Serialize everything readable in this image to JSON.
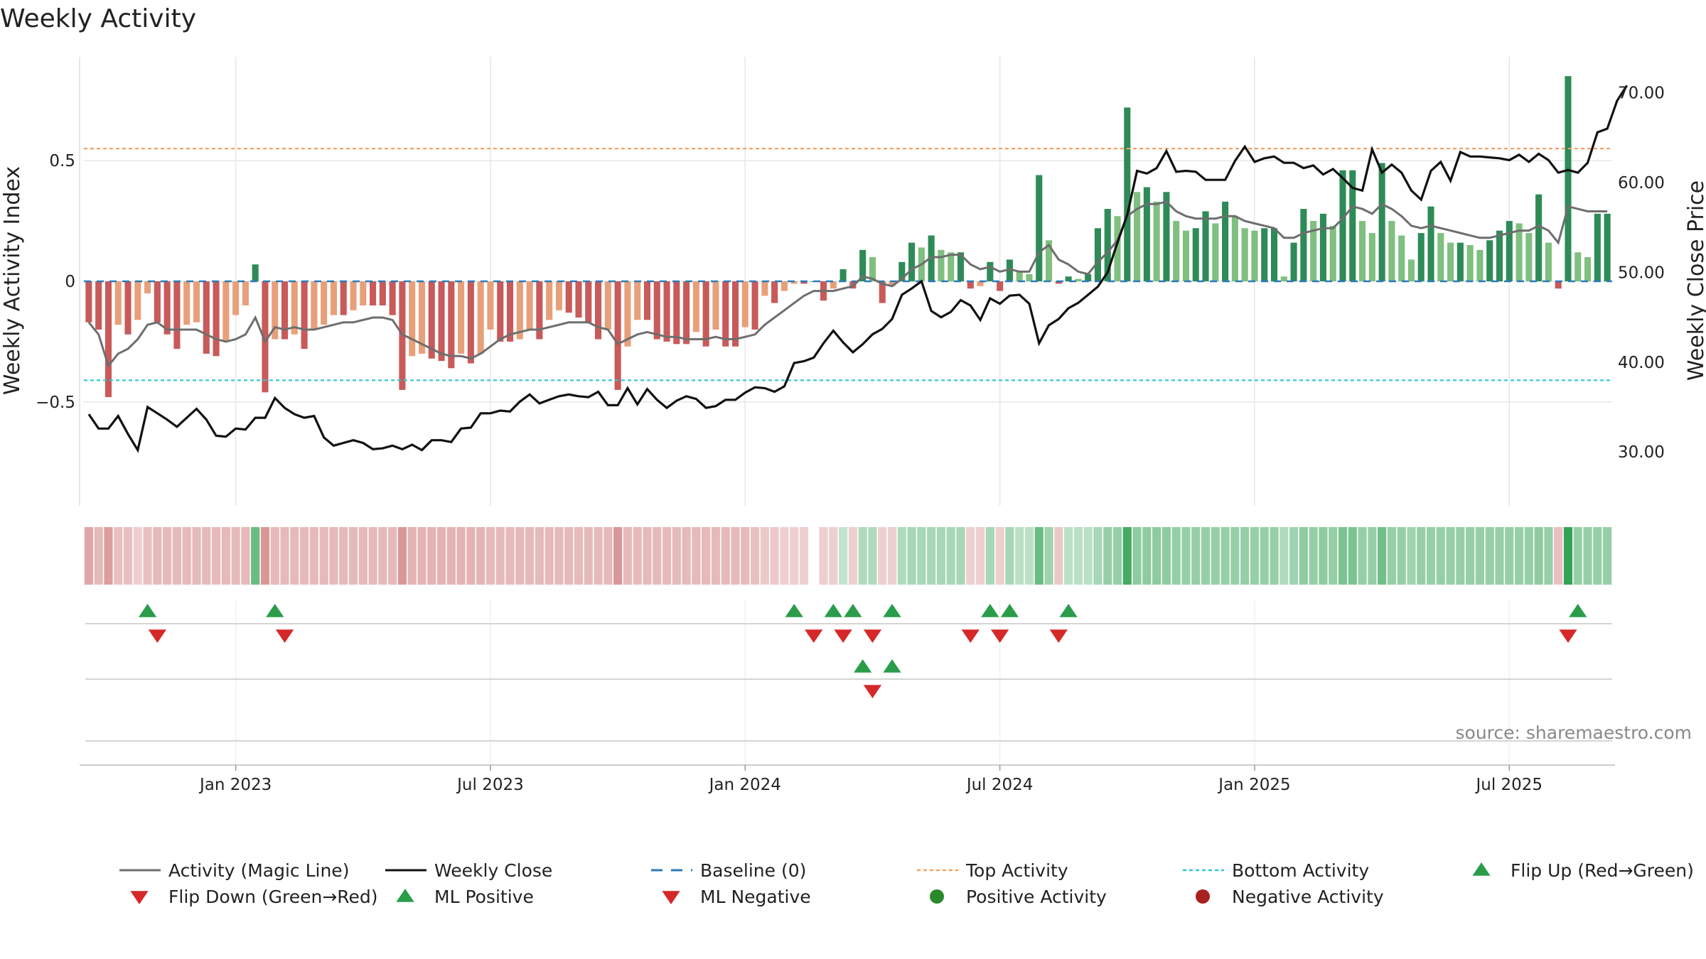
{
  "chart_data": {
    "type": "bar",
    "title": "Weekly Activity",
    "source": "source: sharemaestro.com",
    "ylabel_left": "Weekly Activity Index",
    "ylabel_right": "Weekly Close Price",
    "ylim_left": [
      -0.93,
      0.93
    ],
    "ylim_right": [
      24.0,
      74.0
    ],
    "yticks_left": [
      {
        "v": 0.5,
        "label": "0.5"
      },
      {
        "v": 0,
        "label": "0"
      },
      {
        "v": -0.5,
        "label": "−0.5"
      }
    ],
    "yticks_right": [
      {
        "v": 70,
        "label": "70.00"
      },
      {
        "v": 60,
        "label": "60.00"
      },
      {
        "v": 50,
        "label": "50.00"
      },
      {
        "v": 40,
        "label": "40.00"
      },
      {
        "v": 30,
        "label": "30.00"
      }
    ],
    "x_week_count": 156,
    "xticks": [
      {
        "week": 15,
        "label": "Jan 2023"
      },
      {
        "week": 41,
        "label": "Jul 2023"
      },
      {
        "week": 67,
        "label": "Jan 2024"
      },
      {
        "week": 93,
        "label": "Jul 2024"
      },
      {
        "week": 119,
        "label": "Jan 2025"
      },
      {
        "week": 145,
        "label": "Jul 2025"
      }
    ],
    "top_activity": 0.55,
    "bottom_activity": -0.41,
    "activity": [
      -0.17,
      -0.2,
      -0.48,
      -0.18,
      -0.22,
      -0.16,
      -0.05,
      -0.17,
      -0.22,
      -0.28,
      -0.18,
      -0.17,
      -0.3,
      -0.31,
      -0.25,
      -0.14,
      -0.1,
      0.07,
      -0.46,
      -0.24,
      -0.24,
      -0.22,
      -0.28,
      -0.2,
      -0.18,
      -0.14,
      -0.14,
      -0.12,
      -0.1,
      -0.1,
      -0.1,
      -0.14,
      -0.45,
      -0.31,
      -0.3,
      -0.32,
      -0.33,
      -0.36,
      -0.3,
      -0.34,
      -0.3,
      -0.2,
      -0.25,
      -0.25,
      -0.24,
      -0.2,
      -0.24,
      -0.16,
      -0.12,
      -0.13,
      -0.15,
      -0.17,
      -0.24,
      -0.2,
      -0.45,
      -0.27,
      -0.16,
      -0.16,
      -0.24,
      -0.25,
      -0.26,
      -0.26,
      -0.21,
      -0.27,
      -0.2,
      -0.27,
      -0.27,
      -0.19,
      -0.2,
      -0.06,
      -0.09,
      -0.04,
      -0.01,
      -0.01,
      0,
      -0.08,
      -0.03,
      0.05,
      -0.03,
      0.13,
      0.1,
      -0.09,
      -0.02,
      0.08,
      0.16,
      0.14,
      0.19,
      0.13,
      0.12,
      0.12,
      -0.03,
      -0.02,
      0.08,
      -0.04,
      0.09,
      0.04,
      0.03,
      0.44,
      0.17,
      -0.01,
      0.02,
      0.01,
      0.03,
      0.22,
      0.3,
      0.27,
      0.72,
      0.37,
      0.39,
      0.33,
      0.37,
      0.25,
      0.21,
      0.22,
      0.29,
      0.24,
      0.33,
      0.27,
      0.22,
      0.21,
      0.22,
      0.22,
      0.02,
      0.16,
      0.3,
      0.25,
      0.28,
      0.23,
      0.46,
      0.46,
      0.25,
      0.2,
      0.49,
      0.25,
      0.19,
      0.09,
      0.2,
      0.31,
      0.2,
      0.16,
      0.16,
      0.15,
      0.13,
      0.17,
      0.21,
      0.25,
      0.24,
      0.2,
      0.36,
      0.16,
      -0.03,
      0.85,
      0.12,
      0.1,
      0.28,
      0.28
    ],
    "magic_line": [
      -0.17,
      -0.22,
      -0.35,
      -0.3,
      -0.28,
      -0.24,
      -0.18,
      -0.17,
      -0.2,
      -0.2,
      -0.2,
      -0.2,
      -0.22,
      -0.24,
      -0.25,
      -0.24,
      -0.22,
      -0.15,
      -0.25,
      -0.19,
      -0.2,
      -0.19,
      -0.2,
      -0.2,
      -0.19,
      -0.18,
      -0.17,
      -0.17,
      -0.16,
      -0.15,
      -0.15,
      -0.16,
      -0.22,
      -0.24,
      -0.26,
      -0.28,
      -0.3,
      -0.31,
      -0.31,
      -0.32,
      -0.3,
      -0.27,
      -0.24,
      -0.22,
      -0.21,
      -0.2,
      -0.2,
      -0.19,
      -0.18,
      -0.17,
      -0.17,
      -0.17,
      -0.19,
      -0.2,
      -0.26,
      -0.24,
      -0.22,
      -0.21,
      -0.22,
      -0.23,
      -0.23,
      -0.24,
      -0.24,
      -0.24,
      -0.23,
      -0.24,
      -0.24,
      -0.23,
      -0.22,
      -0.18,
      -0.15,
      -0.12,
      -0.09,
      -0.06,
      -0.04,
      -0.04,
      -0.04,
      -0.03,
      -0.02,
      0.02,
      0.01,
      -0.01,
      -0.02,
      0.01,
      0.05,
      0.07,
      0.1,
      0.1,
      0.11,
      0.11,
      0.07,
      0.05,
      0.06,
      0.04,
      0.05,
      0.04,
      0.04,
      0.12,
      0.15,
      0.09,
      0.07,
      0.04,
      0.03,
      0.08,
      0.12,
      0.17,
      0.27,
      0.3,
      0.32,
      0.32,
      0.33,
      0.29,
      0.27,
      0.26,
      0.26,
      0.26,
      0.27,
      0.27,
      0.25,
      0.24,
      0.23,
      0.22,
      0.18,
      0.18,
      0.2,
      0.21,
      0.22,
      0.22,
      0.26,
      0.31,
      0.3,
      0.28,
      0.32,
      0.3,
      0.27,
      0.23,
      0.22,
      0.23,
      0.22,
      0.21,
      0.2,
      0.19,
      0.18,
      0.18,
      0.19,
      0.2,
      0.21,
      0.21,
      0.23,
      0.21,
      0.16,
      0.31,
      0.3,
      0.29,
      0.29,
      0.29
    ],
    "weekly_close": [
      34.2,
      32.6,
      32.6,
      34.0,
      32.0,
      30.2,
      35.0,
      34.3,
      33.6,
      32.8,
      33.8,
      34.8,
      33.6,
      31.8,
      31.7,
      32.6,
      32.5,
      33.8,
      33.8,
      36.0,
      34.9,
      34.2,
      33.8,
      34.0,
      31.6,
      30.7,
      31.0,
      31.3,
      31.0,
      30.3,
      30.4,
      30.7,
      30.3,
      30.8,
      30.2,
      31.3,
      31.3,
      31.1,
      32.6,
      32.7,
      34.3,
      34.3,
      34.6,
      34.5,
      35.6,
      36.4,
      35.4,
      35.8,
      36.2,
      36.4,
      36.2,
      36.1,
      36.7,
      35.2,
      35.2,
      37.1,
      35.3,
      37.0,
      35.8,
      34.9,
      35.7,
      36.2,
      35.9,
      34.9,
      35.1,
      35.8,
      35.8,
      36.6,
      37.2,
      37.1,
      36.7,
      37.3,
      39.9,
      40.1,
      40.5,
      42.1,
      43.5,
      42.2,
      41.1,
      42.0,
      43.1,
      43.7,
      44.8,
      47.5,
      48.2,
      49.0,
      45.7,
      45.0,
      45.6,
      46.9,
      46.3,
      44.7,
      47.1,
      46.5,
      47.4,
      47.5,
      46.5,
      42.1,
      44.1,
      44.8,
      46.0,
      46.6,
      47.5,
      48.4,
      50.0,
      53.3,
      56.4,
      61.3,
      61.0,
      61.6,
      63.5,
      61.2,
      61.3,
      61.2,
      60.3,
      60.3,
      60.3,
      62.4,
      64.0,
      62.3,
      62.7,
      62.9,
      62.2,
      62.2,
      61.6,
      61.9,
      60.9,
      61.5,
      60.5,
      59.4,
      59.1,
      63.7,
      61.1,
      62.0,
      61.1,
      59.1,
      58.1,
      61.3,
      62.3,
      60.2,
      63.4,
      62.9,
      62.9,
      62.8,
      62.7,
      62.5,
      63.1,
      62.3,
      63.2,
      62.5,
      61.1,
      61.4,
      61.1,
      62.2,
      65.6,
      66.0,
      69.1,
      70.8
    ],
    "top_strip_intensity": [
      0.5,
      0.35,
      0.55,
      0.3,
      0.3,
      0.2,
      0.3,
      0.35,
      0.35,
      0.35,
      0.35,
      0.35,
      0.35,
      0.35,
      0.35,
      0.35,
      0.35,
      0.7,
      0.6,
      0.35,
      0.35,
      0.35,
      0.35,
      0.35,
      0.35,
      0.35,
      0.35,
      0.35,
      0.35,
      0.35,
      0.35,
      0.35,
      0.6,
      0.4,
      0.4,
      0.4,
      0.4,
      0.4,
      0.4,
      0.4,
      0.4,
      0.35,
      0.35,
      0.35,
      0.35,
      0.35,
      0.35,
      0.35,
      0.35,
      0.35,
      0.35,
      0.35,
      0.35,
      0.35,
      0.6,
      0.35,
      0.35,
      0.35,
      0.35,
      0.35,
      0.35,
      0.35,
      0.35,
      0.35,
      0.35,
      0.35,
      0.35,
      0.35,
      0.3,
      0.25,
      0.25,
      0.2,
      0.2,
      0.2,
      0,
      0.2,
      0.2,
      0.2,
      0.2,
      0.3,
      0.3,
      0.2,
      0.2,
      0.3,
      0.35,
      0.35,
      0.35,
      0.35,
      0.35,
      0.35,
      0.2,
      0.2,
      0.35,
      0.2,
      0.35,
      0.25,
      0.25,
      0.7,
      0.4,
      0.25,
      0.25,
      0.25,
      0.25,
      0.35,
      0.45,
      0.45,
      0.9,
      0.5,
      0.5,
      0.5,
      0.5,
      0.45,
      0.45,
      0.45,
      0.45,
      0.45,
      0.45,
      0.45,
      0.45,
      0.45,
      0.45,
      0.45,
      0.3,
      0.4,
      0.5,
      0.45,
      0.5,
      0.45,
      0.6,
      0.6,
      0.45,
      0.45,
      0.65,
      0.45,
      0.45,
      0.4,
      0.45,
      0.45,
      0.45,
      0.45,
      0.45,
      0.45,
      0.45,
      0.45,
      0.45,
      0.45,
      0.45,
      0.45,
      0.5,
      0.45,
      0.3,
      1.0,
      0.45,
      0.45,
      0.45,
      0.45
    ],
    "flip_up_weeks": [
      6,
      19,
      72,
      76,
      78,
      82,
      92,
      94,
      100,
      152
    ],
    "flip_down_weeks": [
      7,
      20,
      74,
      77,
      80,
      90,
      93,
      99,
      151
    ],
    "ml_positive_weeks": [
      79,
      82
    ],
    "ml_negative_weeks": [
      80
    ],
    "legend": [
      {
        "label": "Activity (Magic Line)",
        "kind": "line",
        "color": "#6e6e6e"
      },
      {
        "label": "Weekly Close",
        "kind": "line",
        "color": "#111111"
      },
      {
        "label": "Baseline (0)",
        "kind": "dash",
        "color": "#2b7bb9"
      },
      {
        "label": "Top Activity",
        "kind": "dot",
        "color": "#f4a261"
      },
      {
        "label": "Bottom Activity",
        "kind": "dot",
        "color": "#2ec4d6"
      },
      {
        "label": "Flip Up (Red→Green)",
        "kind": "tri-up",
        "color": "#2a9d4a"
      },
      {
        "label": "Flip Down (Green→Red)",
        "kind": "tri-down",
        "color": "#d62828"
      },
      {
        "label": "ML Positive",
        "kind": "tri-up",
        "color": "#2a9d4a"
      },
      {
        "label": "ML Negative",
        "kind": "tri-down",
        "color": "#d62828"
      },
      {
        "label": "Positive Activity",
        "kind": "circle",
        "color": "#2a8a2a"
      },
      {
        "label": "Negative Activity",
        "kind": "circle",
        "color": "#a82020"
      }
    ],
    "colors": {
      "pos_strong": "#2e8b57",
      "pos_light": "#7fbf7f",
      "neg_strong": "#c85a5a",
      "neg_light": "#e8a07a",
      "magic": "#6e6e6e",
      "close": "#111111",
      "baseline": "#2b7bb9",
      "top": "#f4a261",
      "bottom": "#2ec4d6",
      "grid": "#e6e6e6",
      "flip_up": "#2a9d4a",
      "flip_down": "#d62828"
    }
  }
}
